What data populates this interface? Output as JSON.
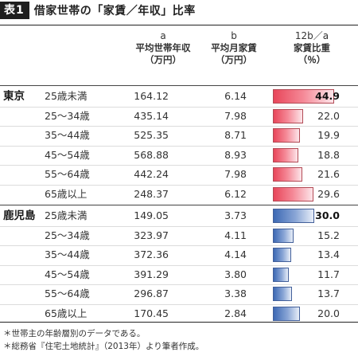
{
  "title": {
    "label": "表1",
    "text": "借家世帯の「家賃／年収」比率"
  },
  "headers": {
    "a": {
      "letter": "a",
      "line1": "平均世帯年収",
      "line2": "（万円）"
    },
    "b": {
      "letter": "b",
      "line1": "平均月家賃",
      "line2": "（万円）"
    },
    "c": {
      "letter": "12b／a",
      "line1": "家賃比重",
      "line2": "（％）"
    }
  },
  "chart_data": {
    "type": "table",
    "columns": [
      "",
      "",
      "a 平均世帯年収（万円）",
      "b 平均月家賃（万円）",
      "12b／a 家賃比重（％）"
    ],
    "colors": {
      "tokyo": "#e8465a",
      "kagoshima": "#3d69b4"
    },
    "bar_max": 50,
    "groups": [
      {
        "region": "東京",
        "rows": [
          {
            "age": "25歳未満",
            "income": "164.12",
            "rent": "6.14",
            "ratio": "44.9",
            "ratio_value": 44.9,
            "highlight": true
          },
          {
            "age": "25～34歳",
            "income": "435.14",
            "rent": "7.98",
            "ratio": "22.0",
            "ratio_value": 22.0
          },
          {
            "age": "35～44歳",
            "income": "525.35",
            "rent": "8.71",
            "ratio": "19.9",
            "ratio_value": 19.9
          },
          {
            "age": "45～54歳",
            "income": "568.88",
            "rent": "8.93",
            "ratio": "18.8",
            "ratio_value": 18.8
          },
          {
            "age": "55～64歳",
            "income": "442.24",
            "rent": "7.98",
            "ratio": "21.6",
            "ratio_value": 21.6
          },
          {
            "age": "65歳以上",
            "income": "248.37",
            "rent": "6.12",
            "ratio": "29.6",
            "ratio_value": 29.6
          }
        ]
      },
      {
        "region": "鹿児島",
        "rows": [
          {
            "age": "25歳未満",
            "income": "149.05",
            "rent": "3.73",
            "ratio": "30.0",
            "ratio_value": 30.0,
            "highlight": true
          },
          {
            "age": "25～34歳",
            "income": "323.97",
            "rent": "4.11",
            "ratio": "15.2",
            "ratio_value": 15.2
          },
          {
            "age": "35～44歳",
            "income": "372.36",
            "rent": "4.14",
            "ratio": "13.4",
            "ratio_value": 13.4
          },
          {
            "age": "45～54歳",
            "income": "391.29",
            "rent": "3.80",
            "ratio": "11.7",
            "ratio_value": 11.7
          },
          {
            "age": "55～64歳",
            "income": "296.87",
            "rent": "3.38",
            "ratio": "13.7",
            "ratio_value": 13.7
          },
          {
            "age": "65歳以上",
            "income": "170.45",
            "rent": "2.84",
            "ratio": "20.0",
            "ratio_value": 20.0
          }
        ]
      }
    ]
  },
  "notes": [
    "＊世帯主の年齢層別のデータである。",
    "＊総務省『住宅土地統計』（2013年）より筆者作成。"
  ]
}
